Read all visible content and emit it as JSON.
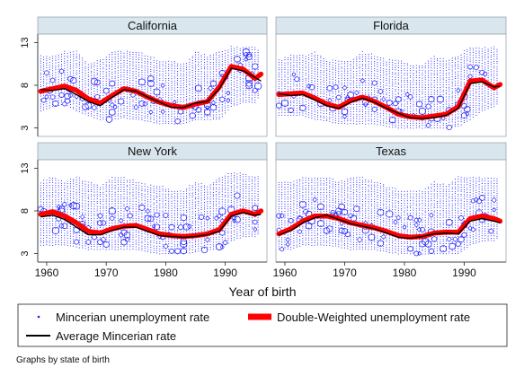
{
  "chart_data": {
    "type": "scatter",
    "xlabel": "Year of birth",
    "note": "Graphs by state of birth",
    "xlim": [
      1958.5,
      1997
    ],
    "ylim": [
      2,
      14
    ],
    "xticks": [
      "1960",
      "1970",
      "1980",
      "1990"
    ],
    "yticks": [
      "3",
      "8",
      "13"
    ],
    "colors": {
      "panel_header": "#d9e6ee",
      "scatter": "#1a1aff",
      "double_weighted": "#ff0000",
      "average": "#000000"
    },
    "legend": {
      "scatter_label": "Mincerian unemployment rate",
      "double_label": "Double-Weighted unemployment rate",
      "average_label": "Average Mincerian rate"
    },
    "panels": [
      {
        "title": "California",
        "x": [
          1959,
          1961,
          1963,
          1965,
          1967,
          1969,
          1971,
          1973,
          1975,
          1977,
          1979,
          1981,
          1983,
          1985,
          1987,
          1989,
          1991,
          1993,
          1995,
          1996
        ],
        "double_weighted": [
          7.3,
          7.6,
          7.9,
          7.4,
          6.4,
          5.9,
          6.8,
          7.6,
          7.3,
          6.6,
          6.0,
          5.6,
          5.4,
          5.8,
          6.1,
          7.8,
          10.2,
          9.9,
          8.8,
          9.3
        ],
        "average": [
          7.5,
          7.4,
          7.6,
          6.9,
          6.1,
          5.6,
          6.6,
          7.5,
          7.3,
          6.6,
          6.0,
          5.4,
          5.4,
          5.9,
          6.1,
          7.6,
          10.0,
          9.7,
          8.9,
          8.5
        ],
        "mincerian_range": [
          [
            5.0,
            11.5
          ],
          [
            5.5,
            11.5
          ],
          [
            5.8,
            12.0
          ],
          [
            5.0,
            12.0
          ],
          [
            4.5,
            10.5
          ],
          [
            4.0,
            11.0
          ],
          [
            4.0,
            12.0
          ],
          [
            4.2,
            12.0
          ],
          [
            4.0,
            12.0
          ],
          [
            3.8,
            11.5
          ],
          [
            3.5,
            11.0
          ],
          [
            3.5,
            11.0
          ],
          [
            3.5,
            10.5
          ],
          [
            4.0,
            12.0
          ],
          [
            4.0,
            11.5
          ],
          [
            4.0,
            12.0
          ],
          [
            5.5,
            12.5
          ],
          [
            6.0,
            12.5
          ],
          [
            6.0,
            12.5
          ],
          [
            7.0,
            12.0
          ]
        ]
      },
      {
        "title": "Florida",
        "x": [
          1959,
          1961,
          1963,
          1965,
          1967,
          1969,
          1971,
          1973,
          1975,
          1977,
          1979,
          1981,
          1983,
          1985,
          1987,
          1989,
          1991,
          1993,
          1995,
          1996
        ],
        "double_weighted": [
          6.9,
          7.0,
          7.1,
          6.5,
          5.8,
          5.4,
          6.2,
          6.6,
          6.1,
          5.4,
          4.6,
          4.3,
          4.2,
          4.4,
          4.6,
          5.5,
          8.5,
          8.6,
          7.7,
          8.1
        ],
        "average": [
          7.0,
          6.8,
          6.9,
          6.3,
          5.6,
          5.3,
          6.0,
          6.5,
          6.0,
          5.3,
          4.7,
          4.2,
          4.1,
          4.2,
          4.5,
          5.3,
          8.2,
          8.4,
          7.8,
          7.9
        ],
        "mincerian_range": [
          [
            4.5,
            11.0
          ],
          [
            4.5,
            11.5
          ],
          [
            4.5,
            11.5
          ],
          [
            4.0,
            12.0
          ],
          [
            3.8,
            11.0
          ],
          [
            3.5,
            11.0
          ],
          [
            3.5,
            11.0
          ],
          [
            3.5,
            12.0
          ],
          [
            3.5,
            11.5
          ],
          [
            3.2,
            11.0
          ],
          [
            3.0,
            11.0
          ],
          [
            3.0,
            10.5
          ],
          [
            3.0,
            10.5
          ],
          [
            3.0,
            11.5
          ],
          [
            3.0,
            11.0
          ],
          [
            3.2,
            11.5
          ],
          [
            4.0,
            12.5
          ],
          [
            5.0,
            12.5
          ],
          [
            5.5,
            12.5
          ],
          [
            6.0,
            12.0
          ]
        ]
      },
      {
        "title": "New York",
        "x": [
          1959,
          1961,
          1963,
          1965,
          1967,
          1969,
          1971,
          1973,
          1975,
          1977,
          1979,
          1981,
          1983,
          1985,
          1987,
          1989,
          1991,
          1993,
          1995,
          1996
        ],
        "double_weighted": [
          7.6,
          7.9,
          7.4,
          6.6,
          5.6,
          5.4,
          5.9,
          6.2,
          6.3,
          5.8,
          5.3,
          5.1,
          5.0,
          5.1,
          5.3,
          5.8,
          7.6,
          8.0,
          7.6,
          8.0
        ],
        "average": [
          7.3,
          7.5,
          7.0,
          6.1,
          5.2,
          5.2,
          5.7,
          6.1,
          6.1,
          5.6,
          5.1,
          5.0,
          4.9,
          5.0,
          5.2,
          5.6,
          7.4,
          7.8,
          7.5,
          7.6
        ],
        "mincerian_range": [
          [
            4.0,
            11.5
          ],
          [
            4.0,
            12.0
          ],
          [
            4.0,
            11.5
          ],
          [
            3.8,
            12.0
          ],
          [
            3.5,
            11.5
          ],
          [
            3.5,
            11.0
          ],
          [
            3.5,
            12.0
          ],
          [
            3.5,
            12.0
          ],
          [
            3.5,
            11.5
          ],
          [
            3.2,
            11.0
          ],
          [
            3.0,
            11.0
          ],
          [
            3.0,
            10.5
          ],
          [
            3.0,
            10.5
          ],
          [
            3.2,
            11.5
          ],
          [
            3.5,
            11.0
          ],
          [
            3.5,
            12.0
          ],
          [
            4.5,
            12.5
          ],
          [
            5.0,
            12.5
          ],
          [
            5.0,
            12.0
          ],
          [
            5.5,
            12.0
          ]
        ]
      },
      {
        "title": "Texas",
        "x": [
          1959,
          1961,
          1963,
          1965,
          1967,
          1969,
          1971,
          1973,
          1975,
          1977,
          1979,
          1981,
          1983,
          1985,
          1987,
          1989,
          1991,
          1993,
          1995,
          1996
        ],
        "double_weighted": [
          5.3,
          5.9,
          6.8,
          7.4,
          7.4,
          7.1,
          6.6,
          6.3,
          6.0,
          5.6,
          5.1,
          4.9,
          5.0,
          5.4,
          5.5,
          5.5,
          7.1,
          7.4,
          7.1,
          6.8
        ],
        "average": [
          5.2,
          5.7,
          6.6,
          7.2,
          7.5,
          7.0,
          6.5,
          6.2,
          5.9,
          5.4,
          4.9,
          4.8,
          5.0,
          5.3,
          5.4,
          5.3,
          6.8,
          7.1,
          6.8,
          6.6
        ],
        "mincerian_range": [
          [
            3.5,
            11.5
          ],
          [
            3.5,
            11.5
          ],
          [
            4.0,
            12.0
          ],
          [
            4.0,
            12.0
          ],
          [
            4.0,
            12.0
          ],
          [
            3.8,
            11.5
          ],
          [
            3.5,
            12.0
          ],
          [
            3.5,
            12.0
          ],
          [
            3.5,
            11.5
          ],
          [
            3.2,
            11.0
          ],
          [
            3.0,
            10.5
          ],
          [
            3.0,
            10.5
          ],
          [
            3.0,
            10.5
          ],
          [
            3.0,
            11.5
          ],
          [
            3.0,
            11.0
          ],
          [
            3.0,
            12.0
          ],
          [
            4.0,
            12.0
          ],
          [
            4.5,
            12.0
          ],
          [
            4.5,
            12.0
          ],
          [
            5.0,
            11.5
          ]
        ]
      }
    ]
  }
}
